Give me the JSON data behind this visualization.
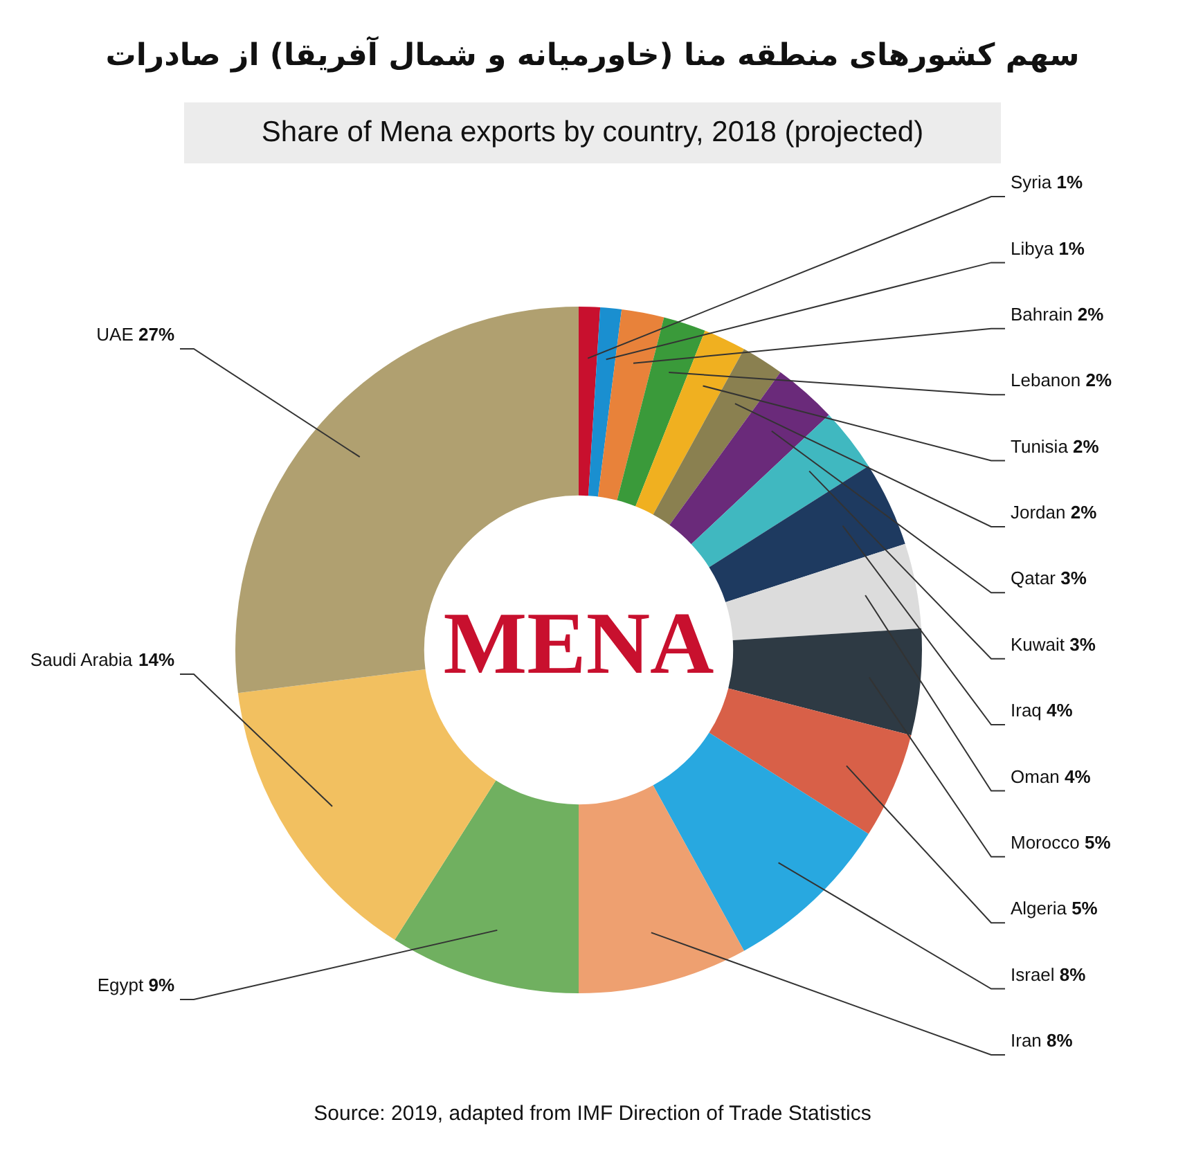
{
  "chart_data": {
    "type": "donut",
    "title": "سهم کشورهای منطقه منا (خاورمیانه و شمال آفریقا) از صادرات",
    "subtitle": "Share of Mena exports by country, 2018 (projected)",
    "categories": [
      "Syria",
      "Libya",
      "Bahrain",
      "Lebanon",
      "Tunisia",
      "Jordan",
      "Qatar",
      "Kuwait",
      "Iraq",
      "Oman",
      "Morocco",
      "Algeria",
      "Israel",
      "Iran",
      "Egypt",
      "Saudi Arabia",
      "UAE"
    ],
    "values": [
      1,
      1,
      2,
      2,
      2,
      2,
      3,
      3,
      4,
      4,
      5,
      5,
      8,
      8,
      9,
      14,
      27
    ],
    "colors": [
      "#c8102e",
      "#1a8fd0",
      "#e8823a",
      "#3a9a3a",
      "#f0b020",
      "#8a8050",
      "#6a2a7a",
      "#40b8c0",
      "#1e3a60",
      "#dcdcdc",
      "#2e3a44",
      "#d86048",
      "#28a8e0",
      "#eea070",
      "#70b060",
      "#f2c060",
      "#b0a070"
    ],
    "value_labels": [
      "1%",
      "1%",
      "2%",
      "2%",
      "2%",
      "2%",
      "3%",
      "3%",
      "4%",
      "4%",
      "5%",
      "5%",
      "8%",
      "8%",
      "9%",
      "14%",
      "27%"
    ],
    "annotations": [
      "MENA",
      "Source: 2019, adapted from IMF Direction of Trade Statistics"
    ],
    "legend": false
  }
}
